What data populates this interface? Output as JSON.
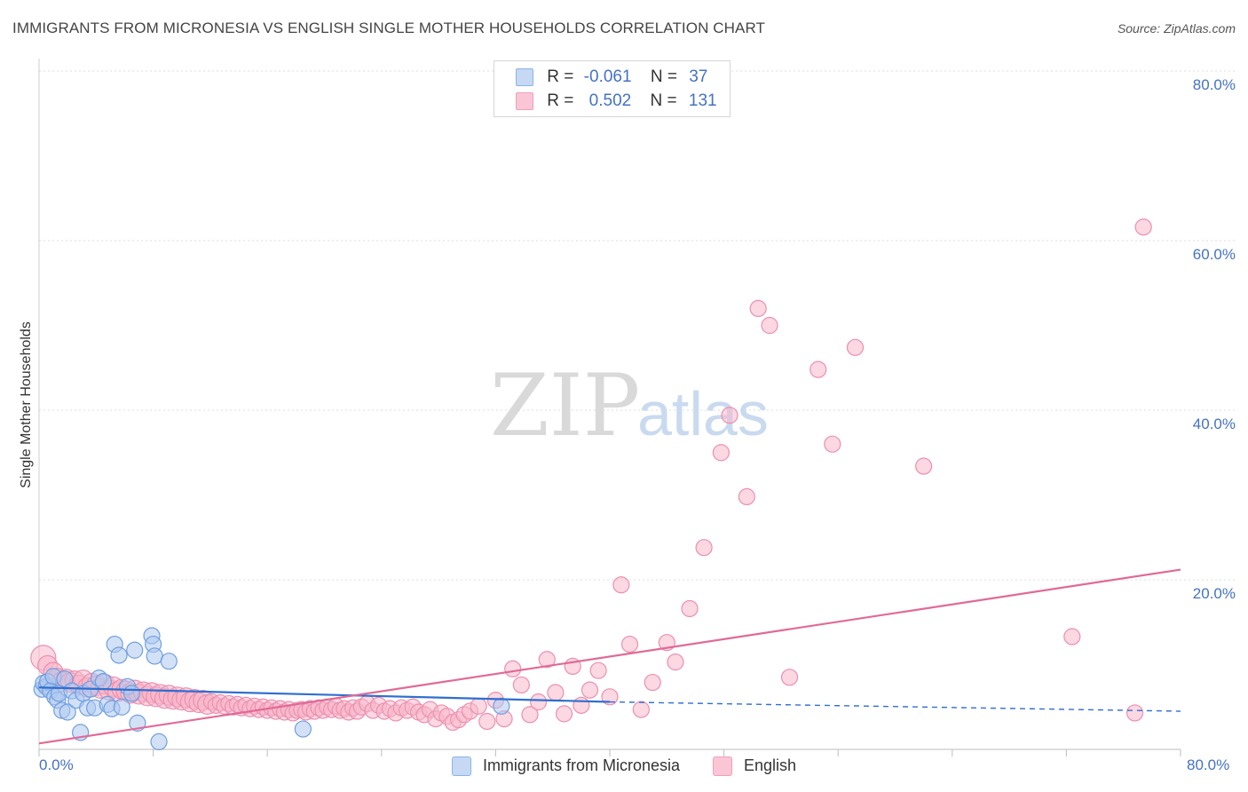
{
  "header": {
    "title": "IMMIGRANTS FROM MICRONESIA VS ENGLISH SINGLE MOTHER HOUSEHOLDS CORRELATION CHART",
    "source": "Source: ZipAtlas.com"
  },
  "watermark": {
    "part1": "ZIP",
    "part2": "atlas"
  },
  "legend": {
    "r_label": "R =",
    "n_label": "N =",
    "series1": {
      "r": "-0.061",
      "n": "37"
    },
    "series2": {
      "r": "0.502",
      "n": "131"
    }
  },
  "colors": {
    "blue_fill": "#aec9f0",
    "blue_stroke": "#6f9fe0",
    "blue_line": "#2f6fd0",
    "pink_fill": "#f7b8cb",
    "pink_stroke": "#ec8fb0",
    "pink_line": "#e06a96",
    "grid": "#dcdcdc",
    "tick_text": "#4472c4"
  },
  "chart_data": {
    "type": "scatter",
    "title": "IMMIGRANTS FROM MICRONESIA VS ENGLISH SINGLE MOTHER HOUSEHOLDS CORRELATION CHART",
    "xlabel": "",
    "ylabel": "Single Mother Households",
    "xlim": [
      0,
      80
    ],
    "ylim": [
      0,
      80
    ],
    "x_tick_labels": [
      "0.0%",
      "80.0%"
    ],
    "y_ticks": [
      20,
      40,
      60,
      80
    ],
    "y_tick_labels": [
      "20.0%",
      "40.0%",
      "60.0%",
      "80.0%"
    ],
    "legend_position": "bottom",
    "series": [
      {
        "name": "Immigrants from Micronesia",
        "color": "#aec9f0",
        "r": -0.061,
        "n": 37,
        "trend": {
          "x": [
            0,
            40
          ],
          "y": [
            7.3,
            5.6
          ],
          "dashed_to": [
            80,
            4.5
          ]
        },
        "points": [
          [
            0.2,
            7.1
          ],
          [
            0.3,
            7.8
          ],
          [
            0.5,
            7.4
          ],
          [
            0.6,
            8.0
          ],
          [
            0.8,
            6.9
          ],
          [
            1.0,
            8.6
          ],
          [
            1.1,
            6.2
          ],
          [
            1.3,
            5.8
          ],
          [
            1.4,
            6.6
          ],
          [
            1.6,
            4.6
          ],
          [
            1.8,
            8.3
          ],
          [
            2.0,
            4.4
          ],
          [
            2.3,
            6.9
          ],
          [
            2.6,
            5.8
          ],
          [
            2.9,
            2.0
          ],
          [
            3.1,
            6.6
          ],
          [
            3.4,
            4.9
          ],
          [
            3.6,
            7.1
          ],
          [
            3.9,
            4.9
          ],
          [
            4.2,
            8.4
          ],
          [
            4.5,
            8.0
          ],
          [
            4.8,
            5.3
          ],
          [
            5.1,
            4.8
          ],
          [
            5.3,
            12.4
          ],
          [
            5.6,
            11.1
          ],
          [
            5.8,
            5.0
          ],
          [
            6.2,
            7.4
          ],
          [
            6.5,
            6.6
          ],
          [
            6.7,
            11.7
          ],
          [
            6.9,
            3.1
          ],
          [
            7.9,
            13.4
          ],
          [
            8.0,
            12.4
          ],
          [
            8.1,
            11.0
          ],
          [
            8.4,
            0.9
          ],
          [
            9.1,
            10.4
          ],
          [
            18.5,
            2.4
          ],
          [
            32.4,
            5.1
          ]
        ]
      },
      {
        "name": "English",
        "color": "#f7b8cb",
        "r": 0.502,
        "n": 131,
        "trend": {
          "x": [
            0,
            80
          ],
          "y": [
            0.7,
            21.2
          ]
        },
        "points": [
          [
            0.3,
            10.8
          ],
          [
            0.6,
            9.9
          ],
          [
            1.0,
            9.1
          ],
          [
            1.3,
            8.4
          ],
          [
            1.6,
            8.0
          ],
          [
            1.9,
            8.3
          ],
          [
            2.2,
            7.9
          ],
          [
            2.5,
            8.1
          ],
          [
            2.8,
            7.6
          ],
          [
            3.1,
            8.2
          ],
          [
            3.4,
            7.3
          ],
          [
            3.7,
            7.8
          ],
          [
            4.0,
            7.5
          ],
          [
            4.3,
            7.2
          ],
          [
            4.6,
            7.7
          ],
          [
            4.9,
            7.0
          ],
          [
            5.2,
            7.4
          ],
          [
            5.5,
            6.8
          ],
          [
            5.8,
            7.1
          ],
          [
            6.1,
            6.9
          ],
          [
            6.4,
            6.6
          ],
          [
            6.7,
            7.0
          ],
          [
            7.0,
            6.5
          ],
          [
            7.3,
            6.8
          ],
          [
            7.6,
            6.3
          ],
          [
            7.9,
            6.7
          ],
          [
            8.2,
            6.2
          ],
          [
            8.5,
            6.5
          ],
          [
            8.8,
            6.0
          ],
          [
            9.1,
            6.4
          ],
          [
            9.4,
            5.9
          ],
          [
            9.7,
            6.2
          ],
          [
            10.0,
            5.8
          ],
          [
            10.3,
            6.1
          ],
          [
            10.6,
            5.6
          ],
          [
            10.9,
            5.9
          ],
          [
            11.2,
            5.5
          ],
          [
            11.5,
            5.8
          ],
          [
            11.8,
            5.3
          ],
          [
            12.1,
            5.6
          ],
          [
            12.4,
            5.2
          ],
          [
            12.7,
            5.5
          ],
          [
            13.0,
            5.1
          ],
          [
            13.3,
            5.4
          ],
          [
            13.6,
            5.0
          ],
          [
            13.9,
            5.3
          ],
          [
            14.2,
            4.9
          ],
          [
            14.5,
            5.2
          ],
          [
            14.8,
            4.8
          ],
          [
            15.1,
            5.1
          ],
          [
            15.4,
            4.7
          ],
          [
            15.7,
            5.0
          ],
          [
            16.0,
            4.6
          ],
          [
            16.3,
            4.9
          ],
          [
            16.6,
            4.5
          ],
          [
            16.9,
            4.8
          ],
          [
            17.2,
            4.4
          ],
          [
            17.5,
            4.7
          ],
          [
            17.8,
            4.3
          ],
          [
            18.1,
            4.6
          ],
          [
            18.4,
            4.7
          ],
          [
            18.7,
            4.4
          ],
          [
            19.0,
            4.8
          ],
          [
            19.3,
            4.5
          ],
          [
            19.6,
            4.9
          ],
          [
            19.9,
            4.6
          ],
          [
            20.2,
            5.0
          ],
          [
            20.5,
            4.7
          ],
          [
            20.8,
            5.1
          ],
          [
            21.1,
            4.6
          ],
          [
            21.4,
            4.8
          ],
          [
            21.7,
            4.4
          ],
          [
            22.0,
            4.9
          ],
          [
            22.3,
            4.5
          ],
          [
            22.6,
            5.0
          ],
          [
            23.0,
            5.4
          ],
          [
            23.4,
            4.6
          ],
          [
            23.8,
            5.2
          ],
          [
            24.2,
            4.5
          ],
          [
            24.6,
            4.8
          ],
          [
            25.0,
            4.3
          ],
          [
            25.4,
            4.9
          ],
          [
            25.8,
            4.6
          ],
          [
            26.2,
            5.0
          ],
          [
            26.6,
            4.4
          ],
          [
            27.0,
            4.1
          ],
          [
            27.4,
            4.7
          ],
          [
            27.8,
            3.6
          ],
          [
            28.2,
            4.3
          ],
          [
            28.6,
            3.9
          ],
          [
            29.0,
            3.2
          ],
          [
            29.4,
            3.5
          ],
          [
            29.8,
            4.1
          ],
          [
            30.2,
            4.5
          ],
          [
            30.8,
            5.1
          ],
          [
            31.4,
            3.3
          ],
          [
            32.0,
            5.8
          ],
          [
            32.6,
            3.6
          ],
          [
            33.2,
            9.5
          ],
          [
            33.8,
            7.6
          ],
          [
            34.4,
            4.1
          ],
          [
            35.0,
            5.6
          ],
          [
            35.6,
            10.6
          ],
          [
            36.2,
            6.7
          ],
          [
            36.8,
            4.2
          ],
          [
            37.4,
            9.8
          ],
          [
            38.0,
            5.2
          ],
          [
            38.6,
            7.0
          ],
          [
            39.2,
            9.3
          ],
          [
            40.0,
            6.2
          ],
          [
            40.8,
            19.4
          ],
          [
            41.4,
            12.4
          ],
          [
            42.2,
            4.7
          ],
          [
            43.0,
            7.9
          ],
          [
            44.0,
            12.6
          ],
          [
            44.6,
            10.3
          ],
          [
            45.6,
            16.6
          ],
          [
            46.6,
            23.8
          ],
          [
            47.8,
            35.0
          ],
          [
            48.4,
            39.4
          ],
          [
            49.6,
            29.8
          ],
          [
            50.4,
            52.0
          ],
          [
            51.2,
            50.0
          ],
          [
            52.6,
            8.5
          ],
          [
            54.6,
            44.8
          ],
          [
            55.6,
            36.0
          ],
          [
            57.2,
            47.4
          ],
          [
            62.0,
            33.4
          ],
          [
            77.4,
            61.6
          ],
          [
            76.8,
            4.3
          ],
          [
            72.4,
            13.3
          ]
        ]
      }
    ]
  },
  "bottom_legend": {
    "series1_label": "Immigrants from Micronesia",
    "series2_label": "English"
  }
}
